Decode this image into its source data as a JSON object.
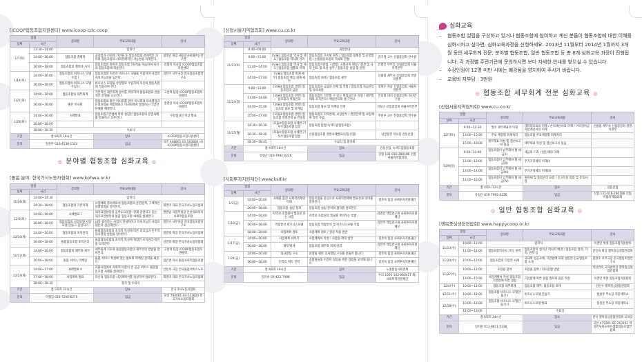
{
  "intro": {
    "heading": "심화교육",
    "items": [
      "협동조합 설립을 구상하고 있거나 협동조합에 참여하고 계신 분들이 협동조합에 대한 이해를 심화시키고 싶다면, 심화교육과정을 신청하세요. 2013년 11월부터 2014년 1월까지 3개월 동안 세무회계 전문, 분야별 협동조합, 일반 협동조합 등 총 8개 심화교육 과정이 진행됩니다. 각 과정별 주관기관에 문의하시면 보다 자세한 안내를 받으실 수 있습니다.",
      "수강인원이 12명 미만 시에는 폐강됨을 양지하여 주시기 바랍니다.",
      "교육비 자부담 : 3만원"
    ]
  },
  "section_titles": {
    "tax": "협동조합 세무회계 전문 심화교육",
    "field": "분야별 협동조합 심화교육",
    "general": "일반 협동조합 심화교육"
  },
  "headers": {
    "schedule": "일정",
    "date": "날짜",
    "time": "시간",
    "course": "강의명",
    "content": "주요교육내용",
    "lecturer": "강사"
  },
  "tables": [
    {
      "source": "[iCOOP협동조합지원센터] www.icoop-cdc.coop",
      "groups": [
        {
          "date": "1/7(화)",
          "sessions": [
            {
              "time": "13:30~14:00",
              "span": "입학식"
            },
            {
              "time": "14:00~16:00",
              "title": "협동조합 경제학",
              "content": "공정함과 신뢰에 기반을 둔 협동조합의 경제적인 의미와 협동조합의 사회경제적인 가능성을 이해한다.",
              "lecturer": "정태인 원장 새로운사회를여는연구원"
            },
            {
              "time": "16:00~18:00",
              "title": "협동조합의 철학과 가치",
              "content": "협동조합의 철학과 협동조합 7원칙을 학습하여 자신의 협동조합에 적용한다.",
              "lecturer": "김형미 이사장 iCOOP협동조합지원센터"
            }
          ]
        },
        {
          "date": "1/14(화)",
          "sessions": [
            {
              "time": "14:00~16:00",
              "title": "협동조합의 비즈니스 모델 수립 I",
              "content": "협동조합의 미션과 비즈니스 모델을 수립하여 사업의 지속가능성을 높인다.",
              "lecturer": "김현수 사무국장 한국협동조합연구소"
            },
            {
              "time": "16:00~18:00",
              "title": "협동조합의 비즈니스 모델 수립 II",
              "content": "비즈니스 모델을 유형별로 수립하여 자신의 협동조합에 적용하여 본다.",
              "lecturer": ""
            }
          ]
        },
        {
          "date": "1/21(화)",
          "sessions": [
            {
              "time": "14:00~16:00",
              "title": "협동조합의 재무회계",
              "content": "기본적인 재무회계 용어를 파악하여 협동조합의 안정적인 운영을 도모한다.",
              "lecturer": "고성혁 팀장 iCOOP협동조합지원센터"
            },
            {
              "time": "16:00~18:00",
              "title": "좋은 이사회",
              "content": "협동조합의 좋은 이사회를 알아 이사회의 의사결정과 논의과정을 체험해보고 이사회에서 발생하는 다양한 문제를 해결한다.",
              "lecturer": "송영강 이사 iCOOP협동조합지원센터"
            }
          ]
        },
        {
          "date": "1/28(화)",
          "sessions": [
            {
              "time": "14:00~16:00",
              "title": "사례발표",
              "content": "협동조합기본법에 따라 설립된 협동조합의 운영사례를 발표하고 토론한다.",
              "lecturer": "수강생 8인 이상 발표"
            },
            {
              "time": "16:00~18:00",
              "title": "",
              "content": "",
              "lecturer": ""
            },
            {
              "time": "18:00~18:30",
              "span": "수료식"
            }
          ]
        }
      ],
      "footer": [
        [
          "기간",
          "총 8회차 16시간",
          "장소",
          "iCOOP협동조합지원센터"
        ],
        [
          "문의",
          "김현주 010-4538-1523",
          "입금",
          "국민 448801-01-503800 사)iCOOP협동조합지원센터"
        ]
      ]
    },
    {
      "source": "[돌봄 분야: 한국가사노동자협회] www.kohwa.or.kr",
      "groups": [
        {
          "date": "11/26(화)",
          "sessions": [
            {
              "time": "14:00~14:30",
              "span": "입학식"
            },
            {
              "time": "14:30~18:00",
              "title": "협동조합의 기본이해",
              "content": "사업체와 결사체로서 협동조합의 운영원칙, 구체적인 실행방법을 알아본다.",
              "lecturer": "최영미 대표 한국가사노동자협회"
            }
          ]
        },
        {
          "date": "12/3(화)",
          "sessions": [
            {
              "time": "14:00~16:00",
              "title": "사례발표 I",
              "content": "재가요양센터의 공주도요양원: 현재 운영되고 있는 재가요양센터의 돌봄 협동조합 사례를 살펴본다.",
              "lecturer": "권영남 사업부실장 안산의료복지사회적협동조합"
            },
            {
              "time": "16:00~18:00",
              "title": "협동조합의 사업모델 사업모델 만들고 검검하기",
              "content": "내가 생각하는 사업이 현실적이고 지속가능한 사업모델인지 검검해본다.",
              "lecturer": "김현수 사무국장 한국협동조합연구소"
            }
          ]
        },
        {
          "date": "12/10(화)",
          "sessions": [
            {
              "time": "14:00~16:00",
              "title": "협동조합의 조직관리",
              "content": "돌봄협동조합의 조직적 특성에 따른 리더십과 민주적 의사결정 방법을 알아본다.",
              "lecturer": "김경희 회장 한국가사노동자협회"
            },
            {
              "time": "16:00~18:00",
              "title": "돌봄협동조합 조직관리",
              "content": "돌봄협동조합의 조직적 특성에 적합한 조직관리 방안을 모색한다.",
              "lecturer": "김경희 회장 한국가사노동자협회"
            }
          ]
        },
        {
          "date": "12/17(화)",
          "sessions": [
            {
              "time": "14:00~16:00",
              "title": "협동조합의 재무와 세무",
              "content": "세무회계 기초와 돌봄협동조합의 재무관리 방법을 알아본다.",
              "lecturer": "고성혁 팀장 iCOOP협동조합지원센터"
            },
            {
              "time": "16:00~18:00",
              "title": "돌봄 서비스 마케팅",
              "content": "돌봄 서비스 특성에 맞는 홍보와 마케팅 전략을 세운다.",
              "lecturer": "임인경 이사 돌봄사회적협동조합"
            }
          ]
        },
        {
          "date": "12/24(화)",
          "sessions": [
            {
              "time": "14:00~17:00",
              "title": "사례발표 II",
              "content": "지불사업에서 사회적 비중이 큰 공공 서비스 돌봄협동조합 사례를 살펴본다.",
              "lecturer": "안동석 국장 전국돌봄서비스노조"
            },
            {
              "time": "17:00~18:00",
              "title": "사업계획 발표",
              "content": "자신의 협동조합 사업계획서를 작성하여 발표한다.",
              "lecturer": "최영미 대표 한국가사노동자협회"
            },
            {
              "time": "18:00~18:30",
              "span": "평가 및 수료식"
            }
          ]
        }
      ],
      "footer": [
        [
          "기간",
          "총 5회차 22시간",
          "장소",
          "한국가사노동자협회"
        ],
        [
          "문의",
          "이정임 010-7200-6270",
          "입금",
          "우리 794001-04-112820 한국가사노동자협회"
        ]
      ]
    },
    {
      "source": "[신협서울지역협의회] www.cu.co.kr",
      "groups": [
        {
          "date": "11/23(토)",
          "sessions": [
            {
              "time": "8:40~09:00",
              "span": "과정안내"
            },
            {
              "time": "9:00~11:00",
              "title": "[모듈1:협동조합 역사 및 제도] 협동조합 역사와 가치",
              "content": "협동조합의 가치와 원칙 / 협동조합 정체성 및 운영방법 / 신용협동조합의 역사와 현황",
              "lecturer": "김구경 교수 신협중앙회 연수원"
            },
            {
              "time": "11:00~14:00",
              "title": "[모듈1:협동조합 역사 및 제도] 협동조합 법률의 이해",
              "content": "협동조합기본법, 시행령, 시행규칙 해설 / 정관 및 규약 검토 및 작성 실무 / 협동조합 설립 및 운영",
              "lecturer": "안병은 부부장 신협중앙회 서울지역본부"
            },
            {
              "time": "14:00~17:00",
              "title": "[모듈2:협동조합 회계·세무] 협동조합 핵심 회계·세무",
              "content": "협동조합 회계 / 협동조합 세무",
              "lecturer": "신홍충 세무사 신협중앙회 경영지원부"
            }
          ]
        },
        {
          "date": "11/24(일)",
          "sessions": [
            {
              "time": "9:00~11:00",
              "title": "[모듈3:협동조합 경영] 협동조합과 금융",
              "content": "협동조합과 금융의 관계 및 역할 / 협동조합 자금관리 및 유의사항",
              "lecturer": "정혁수 차장 신협중앙회 서울지역본부"
            },
            {
              "time": "11:00~14:00",
              "title": "[모듈3:협동조합 경영] 협동조합과 위험관리",
              "content": "협동조합이 직면할 수 있는 위험요인과 유형 / 내부통제와 조직관리 / 예방관리와 출구관리",
              "lecturer": "안승룡 대리 신협중앙회 조사연구실"
            },
            {
              "time": "14:00~15:00",
              "title": "[모듈3:협동조합 경영] 협동조합 홍보 및 마케팅",
              "content": "협동조합 홍보 및 마케팅 전략",
              "lecturer": "유정근 신협중앙회 서울지역본부"
            },
            {
              "time": "15:00~17:00",
              "title": "[모듈3:협동조합 경영] 협동조합 경영전략 & 컨설팅",
              "content": "협동조합과 지역경제, 시장분석 / 경영전략 및 사업계획 발전 수립",
              "lecturer": "주진우 교수 신협중앙회 연수원"
            }
          ]
        },
        {
          "date": "11/25(월)",
          "sessions": [
            {
              "time": "14:30~16:30",
              "title": "[모듈4:협동조합 사례연구] 우수협동조합 탐방",
              "content": "협동조합 탐방(녹색드림협동조합)",
              "lecturer": ""
            },
            {
              "time": "16:30~18:30",
              "title": "[모듈4:협동조합 사례연구] 우수협동조합 탐방",
              "content": "신용협동조합 경영사례발표(강동신협)",
              "lecturer": "남궁정한 이사장 강동신협"
            },
            {
              "time": "18:30~18:45",
              "span": "수료식 및 평가회"
            }
          ]
        }
      ],
      "footer": [
        [
          "기간",
          "총 9과목 18시간",
          "장소",
          "강동신협, 녹색드림협동조합"
        ],
        [
          "문의",
          "유정근 010-7992-0226",
          "입금",
          "신협 131-016-280186 신협서울지역협의회"
        ]
      ]
    },
    {
      "source": "[사회투자지원재단] www.ksif.kr",
      "groups": [
        {
          "date": "1/3(금)",
          "sessions": [
            {
              "time": "14:00~16:00",
              "title": "사례를 통한 사회적경제의 이해",
              "content": "협동조합을 중심으로 사회적경제에 필요성과 의미를 알아본다.",
              "lecturer": "김유숙 팀장 사회투자지원재단"
            },
            {
              "time": "16:00~18:00",
              "title": "협동조합 설립 절차",
              "content": "협동조합 설립 준비와 절차를 검토한다.",
              "lecturer": ""
            }
          ]
        },
        {
          "date": "1/10(금)",
          "sessions": [
            {
              "time": "14:00~16:00",
              "title": "지역과 조합원이 필요로 하는 사업",
              "content": "지역과 조합원의 필요를 파악하는 방법",
              "lecturer": "김명선 책임연구원 사회투자지원재단"
            },
            {
              "time": "16:00~18:00",
              "title": "역량분석 비즈니스모델",
              "content": "협동조합 역량분석 및 비즈니스모델 수립",
              "lecturer": "김현주 책임연구원 사회투자지원재단"
            },
            {
              "time": "18:00~20:00",
              "title": "사업계획 검토",
              "content": "사업계획 검토 / 현장 적용 방안",
              "lecturer": ""
            }
          ]
        },
        {
          "date": "1/17(금)",
          "sessions": [
            {
              "time": "14:00~16:00",
              "title": "사업계획 세우기",
              "content": "사업계획서 작성 / 조합원 확대 방안",
              "lecturer": "김유숙 팀장 사회투자지원재단"
            },
            {
              "time": "16:00~18:00",
              "title": "재무/회계",
              "content": "협동조합 재무와 회계 관리",
              "lecturer": "김현주 책임연구원 사회투자지원재단"
            }
          ]
        },
        {
          "date": "1/24(금)",
          "sessions": [
            {
              "time": "14:00~16:00",
              "title": "의사결정 구조",
              "content": "운영을 위한 의사결정 구조를 만들어 봅니다.",
              "lecturer": "김유숙 팀장 사회투자지원재단"
            },
            {
              "time": "16:00~18:00",
              "title": "인력의 획득 전략",
              "content": "조합원들의 이견이 갈등을 위한 방법을 모색해 봅니다.",
              "lecturer": "김유숙 팀장 사회투자지원재단"
            }
          ]
        }
      ],
      "footer": [
        [
          "기간",
          "총 8회차 16시간",
          "장소",
          "노원협동사회경제"
        ],
        [
          "문의",
          "김유숙 02-422-7088",
          "입금",
          "우리 1005-102-060417 재)사회투자지원재단"
        ]
      ]
    },
    {
      "source": "[신협서울지역협의회] www.cu.co.kr",
      "groups": [
        {
          "date": "12/7(토)",
          "sessions": [
            {
              "time": "9:00~12:30",
              "title": "필수 재무제표의 이해",
              "content": "대차대조표의 이해 / 손익계산서의 이해 / 이익잉여금처분계산서의 이해",
              "lecturer": "신홍충 세무사 신협중앙회 경영지원부"
            },
            {
              "time": "13:00~15:00",
              "title": "주요 계정별 회계처리",
              "content": "협동조합 주요계정별 회계처리",
              "lecturer": ""
            },
            {
              "time": "15:00~18:00",
              "title": "재무제표 작성 및 결산보고서 실습",
              "content": "재무제표 작성 및 결산보고서 실습",
              "lecturer": ""
            }
          ]
        },
        {
          "date": "12/8(일)",
          "sessions": [
            {
              "time": "9:00~11:00",
              "title": "협동조합이 납부해야 할 세금(I)",
              "content": "세금의 기초 / 법인세의 이해",
              "lecturer": ""
            },
            {
              "time": "11:00~12:00",
              "title": "협동조합이 납부해야 할 세금(II)",
              "content": "부가가치세의 이해(I)",
              "lecturer": ""
            },
            {
              "time": "13:00~14:00",
              "title": "협동조합이 납부해야 할 세금(III)",
              "content": "부가가치세의 이해(II)",
              "lecturer": ""
            },
            {
              "time": "14:00~16:00",
              "title": "협동조합이 납부해야 할 세금(IV)",
              "content": "원천세 및 종합관리 요령 / 신고작성 방법 및 유의사항",
              "lecturer": ""
            }
          ]
        }
      ],
      "footer": [
        [
          "기간",
          "총 4회시 12시간",
          "장소",
          "강동신협"
        ],
        [
          "문의",
          "유정근 010-7992-0226",
          "입금",
          "신협 131-016-280186 신협서울지역협의회"
        ]
      ]
    },
    {
      "source": "[행복중심생협연합회] www.happycoop.or.kr",
      "groups": [
        {
          "date": "11/13(수)",
          "sessions": [
            {
              "time": "10:00~11:00",
              "span": "입학식",
              "lecturer": "이경란 위원 협동조합지원센터"
            },
            {
              "time": "11:00~12:00",
              "title": "협동조합역사의 가치, 원칙",
              "content": "협동조합이 생겨난 역사적 배경 / 협동조합 정의, 가치, 원칙 등",
              "lecturer": "안인숙 회장 행복중심생협연합회"
            }
          ]
        },
        {
          "date": "11/20(수)",
          "sessions": [
            {
              "time": "10:00~12:00",
              "title": "협동조합의 다양한 사례",
              "content": "국내외 성공사례, 기본법에 의해 설립된 신규협동조합 소개",
              "lecturer": "김현수 사무국장 한국협동조합연구소"
            }
          ]
        },
        {
          "date": "11/27(수)",
          "sessions": [
            {
              "time": "10:00~12:00",
              "title": "조합원 참여",
              "content": "조합원 참여 / 회의진행 방법",
              "lecturer": "박신연숙 교육센터장 행복중심생협연합회"
            },
            {
              "time": "13:00~15:00",
              "title": "사업계획서 작성 협동조합 기본법에 따른 설립",
              "content": "기본법에 따른 설립 절차와 정관 작성",
              "lecturer": "이경란 위원 협동조합지원센터"
            }
          ]
        },
        {
          "date": "12/4(수)",
          "sessions": [
            {
              "time": "10:00~12:00",
              "title": "협동조합 재무회계",
              "content": "협동조합 재무, 협동조합 회계",
              "lecturer": "김민수 행복중심생협연합회"
            }
          ]
        },
        {
          "date": "12/11(수)",
          "sessions": [
            {
              "time": "10:00~12:00",
              "title": "협동조합 비즈니스 모델만들기 I",
              "content": "비즈니스모델 만들기",
              "lecturer": "정성훈 부소장 희망제작소"
            }
          ]
        },
        {
          "date": "12/18(수)",
          "sessions": [
            {
              "time": "10:00~12:00",
              "title": "협동조합 비즈니스 모델만들기 II",
              "content": "비즈니스모델 발표",
              "lecturer": "정성훈 부소장 희망제작소"
            },
            {
              "time": "12:00~13:00",
              "span": "수료식"
            }
          ]
        }
      ],
      "footer": [
        [
          "기간",
          "총 6회차 14시간",
          "장소",
          "관악 행복중심생협연합회 교육장"
        ],
        [
          "문의",
          "김지현 011-9811-5338",
          "입금",
          "국민 479301-01-210141 여성민우회소비자생활협동조합연합회"
        ]
      ]
    }
  ]
}
